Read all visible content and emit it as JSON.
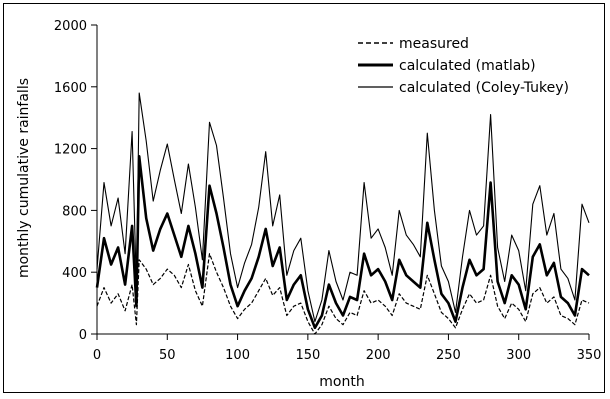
{
  "chart_data": {
    "type": "line",
    "title": "",
    "xlabel": "month",
    "ylabel": "monthly cumulative rainfalls",
    "xlim": [
      0,
      350
    ],
    "ylim": [
      0,
      2000
    ],
    "xticks": [
      0,
      50,
      100,
      150,
      200,
      250,
      300,
      350
    ],
    "yticks": [
      0,
      400,
      800,
      1200,
      1600,
      2000
    ],
    "grid": false,
    "legend_position": "top-right",
    "series": [
      {
        "name": "measured",
        "style": "dashed",
        "color": "#000000",
        "x": [
          0,
          5,
          10,
          15,
          20,
          25,
          28,
          30,
          35,
          40,
          45,
          50,
          55,
          60,
          65,
          70,
          75,
          80,
          85,
          90,
          95,
          100,
          105,
          110,
          115,
          120,
          125,
          130,
          135,
          140,
          145,
          150,
          155,
          160,
          165,
          170,
          175,
          180,
          185,
          190,
          195,
          200,
          205,
          210,
          215,
          220,
          225,
          230,
          235,
          240,
          245,
          250,
          255,
          260,
          265,
          270,
          275,
          280,
          285,
          290,
          295,
          300,
          305,
          310,
          315,
          320,
          325,
          330,
          335,
          340,
          345,
          350
        ],
        "y": [
          180,
          300,
          200,
          260,
          150,
          320,
          60,
          480,
          420,
          320,
          360,
          420,
          380,
          300,
          450,
          280,
          180,
          520,
          400,
          300,
          180,
          100,
          160,
          200,
          280,
          360,
          250,
          300,
          120,
          180,
          200,
          80,
          0,
          60,
          180,
          100,
          60,
          140,
          120,
          280,
          200,
          220,
          180,
          120,
          260,
          200,
          180,
          160,
          380,
          260,
          140,
          100,
          40,
          160,
          260,
          200,
          220,
          380,
          180,
          100,
          200,
          160,
          80,
          260,
          300,
          200,
          240,
          120,
          100,
          60,
          220,
          200
        ]
      },
      {
        "name": "calculated (matlab)",
        "style": "thick",
        "color": "#000000",
        "x": [
          0,
          5,
          10,
          15,
          20,
          25,
          28,
          30,
          35,
          40,
          45,
          50,
          55,
          60,
          65,
          70,
          75,
          80,
          85,
          90,
          95,
          100,
          105,
          110,
          115,
          120,
          125,
          130,
          135,
          140,
          145,
          150,
          155,
          160,
          165,
          170,
          175,
          180,
          185,
          190,
          195,
          200,
          205,
          210,
          215,
          220,
          225,
          230,
          235,
          240,
          245,
          250,
          255,
          260,
          265,
          270,
          275,
          280,
          285,
          290,
          295,
          300,
          305,
          310,
          315,
          320,
          325,
          330,
          335,
          340,
          345,
          350
        ],
        "y": [
          300,
          620,
          450,
          560,
          320,
          700,
          180,
          1150,
          750,
          540,
          680,
          780,
          640,
          500,
          700,
          520,
          300,
          960,
          780,
          560,
          320,
          180,
          280,
          360,
          500,
          680,
          440,
          560,
          220,
          320,
          380,
          160,
          40,
          120,
          320,
          200,
          120,
          240,
          220,
          520,
          380,
          420,
          340,
          220,
          480,
          380,
          340,
          300,
          720,
          480,
          260,
          200,
          80,
          300,
          480,
          380,
          420,
          980,
          340,
          200,
          380,
          320,
          160,
          500,
          580,
          380,
          460,
          240,
          200,
          120,
          420,
          380
        ]
      },
      {
        "name": "calculated (Coley-Tukey)",
        "style": "thin",
        "color": "#000000",
        "x": [
          0,
          5,
          10,
          15,
          20,
          25,
          28,
          30,
          35,
          40,
          45,
          50,
          55,
          60,
          65,
          70,
          75,
          80,
          85,
          90,
          95,
          100,
          105,
          110,
          115,
          120,
          125,
          130,
          135,
          140,
          145,
          150,
          155,
          160,
          165,
          170,
          175,
          180,
          185,
          190,
          195,
          200,
          205,
          210,
          215,
          220,
          225,
          230,
          235,
          240,
          245,
          250,
          255,
          260,
          265,
          270,
          275,
          280,
          285,
          290,
          295,
          300,
          305,
          310,
          315,
          320,
          325,
          330,
          335,
          340,
          345,
          350
        ],
        "y": [
          420,
          980,
          700,
          880,
          520,
          1310,
          300,
          1560,
          1250,
          860,
          1060,
          1230,
          1000,
          780,
          1100,
          820,
          480,
          1370,
          1220,
          880,
          520,
          300,
          460,
          580,
          820,
          1180,
          700,
          900,
          380,
          540,
          620,
          280,
          80,
          220,
          540,
          340,
          220,
          400,
          380,
          980,
          620,
          680,
          560,
          380,
          800,
          640,
          580,
          500,
          1300,
          800,
          440,
          340,
          140,
          500,
          800,
          640,
          700,
          1420,
          560,
          340,
          640,
          540,
          280,
          840,
          960,
          640,
          780,
          420,
          360,
          220,
          840,
          720
        ]
      }
    ]
  }
}
